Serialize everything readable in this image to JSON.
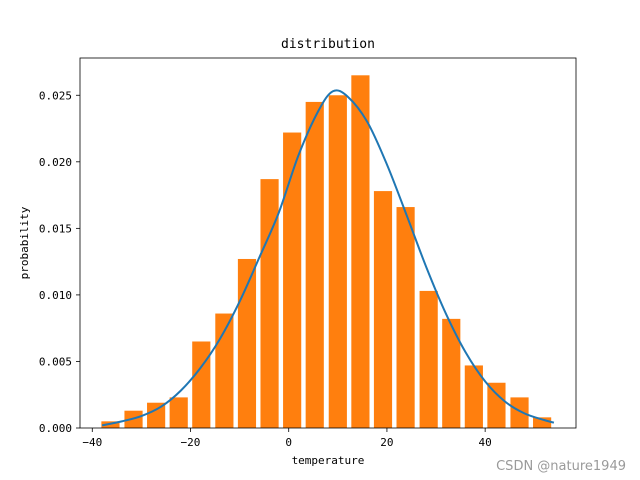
{
  "chart_data": {
    "type": "bar",
    "title": "distribution",
    "xlabel": "temperature",
    "ylabel": "probability",
    "xlim": [
      -42.5,
      58.5
    ],
    "ylim": [
      0,
      0.0278
    ],
    "xticks": [
      -40,
      -20,
      0,
      20,
      40
    ],
    "xtick_labels": [
      "−40",
      "−20",
      "0",
      "20",
      "40"
    ],
    "yticks": [
      0,
      0.005,
      0.01,
      0.015,
      0.02,
      0.025
    ],
    "ytick_labels": [
      "0.000",
      "0.005",
      "0.010",
      "0.015",
      "0.020",
      "0.025"
    ],
    "grid": false,
    "bar_width": 3.7,
    "bar_color": "#ff7f0e",
    "line_color": "#1f77b4",
    "series": [
      {
        "type": "bar",
        "x": [
          -36.3,
          -31.6,
          -27.0,
          -22.4,
          -17.8,
          -13.1,
          -8.5,
          -3.9,
          0.7,
          5.3,
          10.0,
          14.6,
          19.2,
          23.8,
          28.5,
          33.1,
          37.7,
          42.3,
          47.0,
          51.6
        ],
        "values": [
          0.0005,
          0.0013,
          0.0019,
          0.0023,
          0.0065,
          0.0086,
          0.0127,
          0.0187,
          0.0222,
          0.0245,
          0.025,
          0.0265,
          0.0178,
          0.0166,
          0.0103,
          0.0082,
          0.0047,
          0.0034,
          0.0023,
          0.0008
        ]
      },
      {
        "type": "line",
        "x": [
          -38,
          -34,
          -30,
          -26,
          -22,
          -18,
          -14,
          -10,
          -6,
          -2,
          2,
          6,
          9,
          12,
          16,
          20,
          24,
          28,
          32,
          36,
          40,
          44,
          48,
          52,
          54
        ],
        "values": [
          0.0002,
          0.0005,
          0.0009,
          0.0016,
          0.0028,
          0.0045,
          0.0067,
          0.0095,
          0.0128,
          0.0162,
          0.0205,
          0.0238,
          0.0253,
          0.0249,
          0.023,
          0.0198,
          0.016,
          0.0121,
          0.0086,
          0.0057,
          0.0035,
          0.002,
          0.0011,
          0.0006,
          0.0004
        ]
      }
    ]
  },
  "watermark": {
    "text": "CSDN @nature1949"
  }
}
